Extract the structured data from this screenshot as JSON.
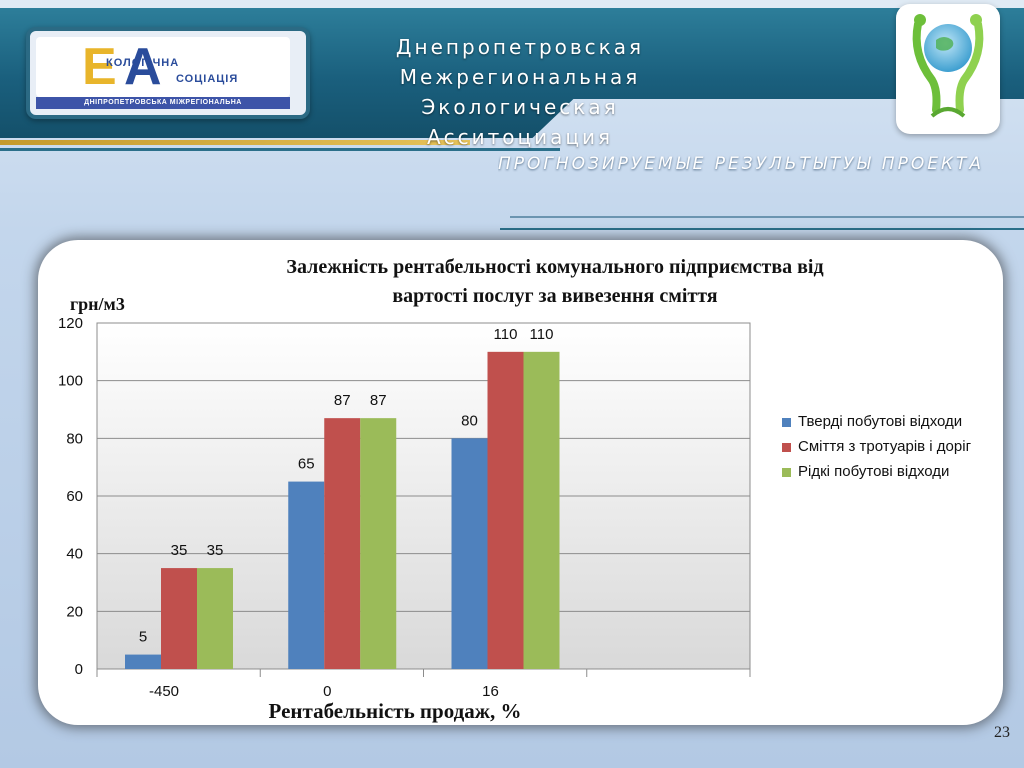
{
  "header": {
    "org_title_lines": [
      "Днепропетровская",
      "Межрегиональная Экологическая",
      "Асситоциация"
    ],
    "logo": {
      "letter_e": "Е",
      "letter_a": "А",
      "word1": "КОЛОГІЧНА",
      "word2": "СОЦІАЦІЯ",
      "sub": "ДНІПРОПЕТРОВСЬКА МІЖРЕГІОНАЛЬНА"
    },
    "emblem_icon": "eco-globe-people-icon"
  },
  "subtitle": "ПРОГНОЗИРУЕМЫЕ РЕЗУЛЬТЫТУЫ ПРОЕКТА",
  "page_number": "23",
  "chart_data": {
    "type": "bar",
    "title": "Залежність  рентабельності  комунального  підприємства від вартості послуг за вивезення сміття",
    "title_lines": [
      "Залежність  рентабельності  комунального  підприємства від",
      "вартості послуг за вивезення сміття"
    ],
    "ylabel": "грн/м3",
    "xlabel": "Рентабельність  продаж,  %",
    "categories": [
      "-450",
      "0",
      "16"
    ],
    "ylim": [
      0,
      120
    ],
    "yticks": [
      0,
      20,
      40,
      60,
      80,
      100,
      120
    ],
    "grid": true,
    "legend_position": "right",
    "series": [
      {
        "name": "Тверді побутові відходи",
        "color": "#4f81bd",
        "values": [
          5,
          65,
          80
        ]
      },
      {
        "name": "Сміття з тротуарів і доріг",
        "color": "#c0504d",
        "values": [
          35,
          87,
          110
        ]
      },
      {
        "name": "Рідкі побутові відходи",
        "color": "#9bbb59",
        "values": [
          35,
          87,
          110
        ]
      }
    ]
  }
}
